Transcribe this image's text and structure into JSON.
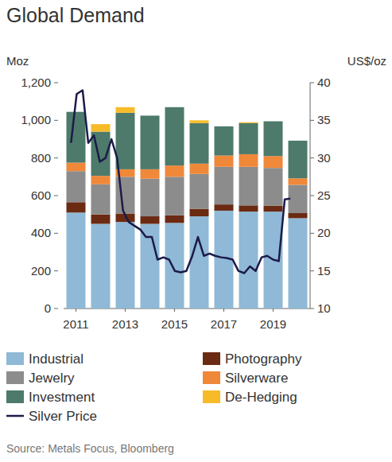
{
  "chart_data": {
    "type": "bar",
    "title": "Global Demand",
    "y_label": "Moz",
    "y2_label": "US$/oz",
    "source": "Source: Metals Focus, Bloomberg",
    "stacked": true,
    "legend": "bottom",
    "x": [
      2011,
      2012,
      2013,
      2014,
      2015,
      2016,
      2017,
      2018,
      2019,
      2020
    ],
    "xlim": [
      2010.5,
      2020.5
    ],
    "xticks": [
      2011,
      2013,
      2015,
      2017,
      2019
    ],
    "ylim": [
      0,
      1200
    ],
    "yticks": [
      0,
      200,
      400,
      600,
      800,
      {
        "value": 1000,
        "label": "1,000"
      },
      {
        "value": 1200,
        "label": "1,200"
      }
    ],
    "y2lim": [
      10,
      40
    ],
    "y2ticks": [
      10,
      15,
      20,
      25,
      30,
      35,
      40
    ],
    "series": [
      {
        "name": "Industrial",
        "type": "bar",
        "color": "#8fb9d6",
        "values": [
          510,
          450,
          460,
          450,
          455,
          490,
          520,
          515,
          515,
          480
        ]
      },
      {
        "name": "Photography",
        "type": "bar",
        "color": "#6b2a12",
        "values": [
          55,
          50,
          45,
          40,
          40,
          40,
          33,
          33,
          32,
          27
        ]
      },
      {
        "name": "Jewelry",
        "type": "bar",
        "color": "#8c8c8c",
        "values": [
          165,
          160,
          195,
          200,
          205,
          185,
          200,
          205,
          200,
          150
        ]
      },
      {
        "name": "Silverware",
        "type": "bar",
        "color": "#f0883a",
        "values": [
          45,
          45,
          40,
          50,
          60,
          55,
          60,
          67,
          63,
          35
        ]
      },
      {
        "name": "Investment",
        "type": "bar",
        "color": "#4d7a6a",
        "values": [
          270,
          235,
          300,
          285,
          310,
          215,
          155,
          165,
          185,
          200
        ]
      },
      {
        "name": "De-Hedging",
        "type": "bar",
        "color": "#f7bb2a",
        "values": [
          0,
          40,
          30,
          0,
          0,
          15,
          0,
          5,
          0,
          0
        ]
      },
      {
        "name": "Silver Price",
        "type": "line",
        "axis": "y2",
        "color": "#1c1b4a",
        "x": [
          2010.8,
          2011.03,
          2011.27,
          2011.5,
          2011.73,
          2011.97,
          2012.2,
          2012.44,
          2012.67,
          2012.91,
          2013.14,
          2013.37,
          2013.61,
          2013.84,
          2014.08,
          2014.31,
          2014.55,
          2014.78,
          2015.01,
          2015.25,
          2015.48,
          2015.72,
          2015.95,
          2016.19,
          2016.42,
          2016.65,
          2016.89,
          2017.12,
          2017.36,
          2017.59,
          2017.83,
          2018.06,
          2018.29,
          2018.53,
          2018.76,
          2019.0,
          2019.23,
          2019.47,
          2019.7
        ],
        "values": [
          32,
          38.5,
          39,
          32,
          33,
          29.5,
          30,
          32.5,
          30,
          23,
          21.5,
          21,
          20.5,
          19.5,
          19.5,
          16.5,
          16.8,
          16.5,
          15,
          14.8,
          15,
          17,
          19.5,
          17,
          17.3,
          17,
          16.8,
          16.7,
          16.5,
          15,
          14.7,
          15.6,
          15,
          16.8,
          17,
          16.5,
          16.3,
          24.5,
          24.6
        ]
      }
    ]
  }
}
